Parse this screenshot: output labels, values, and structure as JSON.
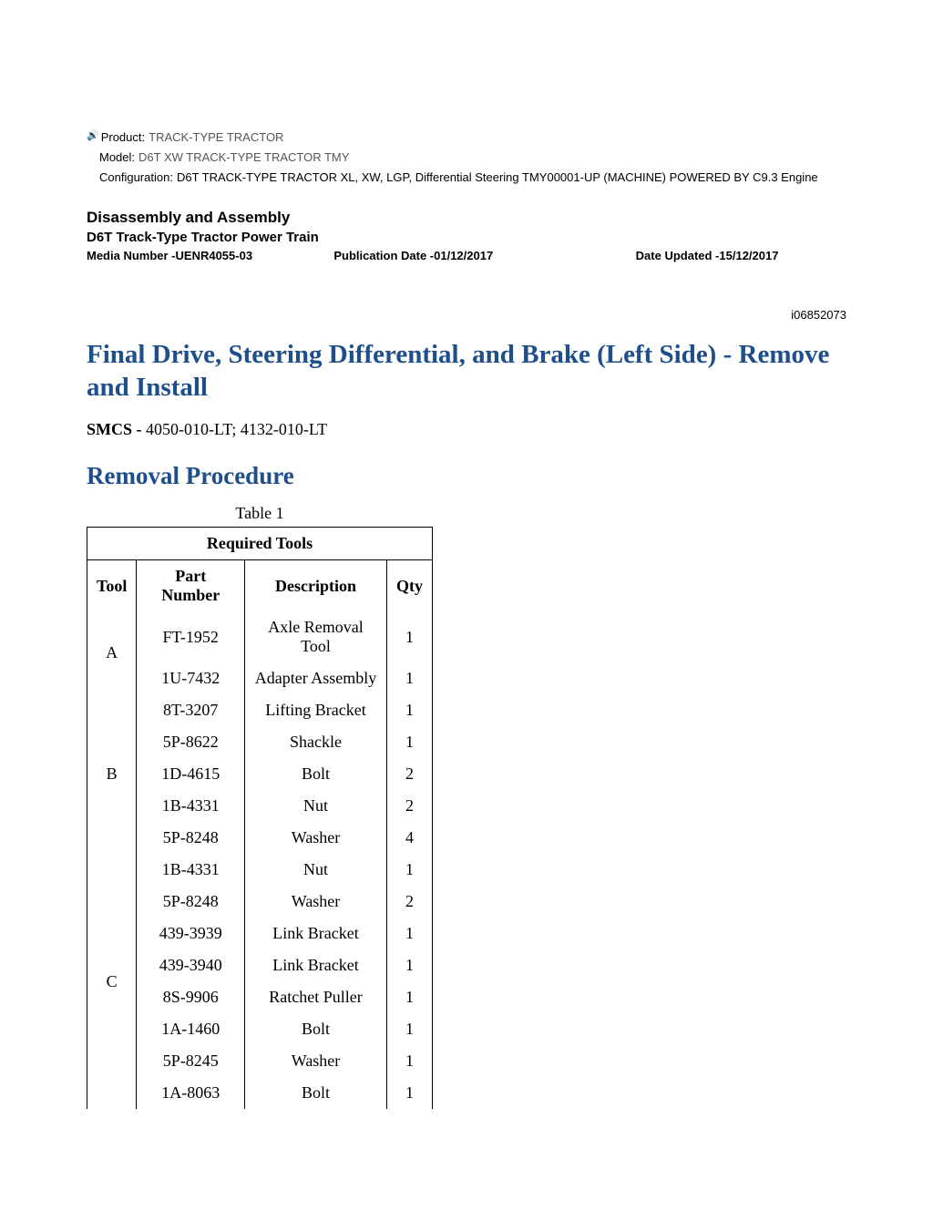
{
  "meta": {
    "product_label": "Product:",
    "product_value": "TRACK-TYPE TRACTOR",
    "model_label": "Model:",
    "model_value": "D6T XW TRACK-TYPE TRACTOR TMY",
    "config_label": "Configuration:",
    "config_value": "D6T TRACK-TYPE TRACTOR XL, XW, LGP, Differential Steering TMY00001-UP (MACHINE) POWERED BY C9.3 Engine"
  },
  "header": {
    "section": "Disassembly and Assembly",
    "subtitle": "D6T Track-Type Tractor Power Train",
    "media": "Media Number -UENR4055-03",
    "pub_date": "Publication Date -01/12/2017",
    "date_updated": "Date Updated -15/12/2017",
    "doc_id": "i06852073"
  },
  "title": "Final Drive, Steering Differential, and Brake (Left Side) - Remove and Install",
  "smcs_label": "SMCS -",
  "smcs_value": "4050-010-LT; 4132-010-LT",
  "procedure_title": "Removal Procedure",
  "table": {
    "caption": "Table 1",
    "title": "Required Tools",
    "columns": [
      "Tool",
      "Part Number",
      "Description",
      "Qty"
    ],
    "groups": [
      {
        "tool": "A",
        "rows": [
          {
            "pn": "FT-1952",
            "desc": "Axle Removal Tool",
            "qty": "1"
          },
          {
            "pn": "1U-7432",
            "desc": "Adapter Assembly",
            "qty": "1"
          }
        ]
      },
      {
        "tool": "B",
        "rows": [
          {
            "pn": "8T-3207",
            "desc": "Lifting Bracket",
            "qty": "1"
          },
          {
            "pn": "5P-8622",
            "desc": "Shackle",
            "qty": "1"
          },
          {
            "pn": "1D-4615",
            "desc": "Bolt",
            "qty": "2"
          },
          {
            "pn": "1B-4331",
            "desc": "Nut",
            "qty": "2"
          },
          {
            "pn": "5P-8248",
            "desc": "Washer",
            "qty": "4"
          }
        ]
      },
      {
        "tool": "C",
        "rows": [
          {
            "pn": "1B-4331",
            "desc": "Nut",
            "qty": "1"
          },
          {
            "pn": "5P-8248",
            "desc": "Washer",
            "qty": "2"
          },
          {
            "pn": "439-3939",
            "desc": "Link Bracket",
            "qty": "1"
          },
          {
            "pn": "439-3940",
            "desc": "Link Bracket",
            "qty": "1"
          },
          {
            "pn": "8S-9906",
            "desc": "Ratchet Puller",
            "qty": "1"
          },
          {
            "pn": "1A-1460",
            "desc": "Bolt",
            "qty": "1"
          },
          {
            "pn": "5P-8245",
            "desc": "Washer",
            "qty": "1"
          },
          {
            "pn": "1A-8063",
            "desc": "Bolt",
            "qty": "1"
          }
        ]
      }
    ]
  },
  "colors": {
    "heading_blue": "#1e4f8a",
    "meta_gray": "#555555"
  }
}
